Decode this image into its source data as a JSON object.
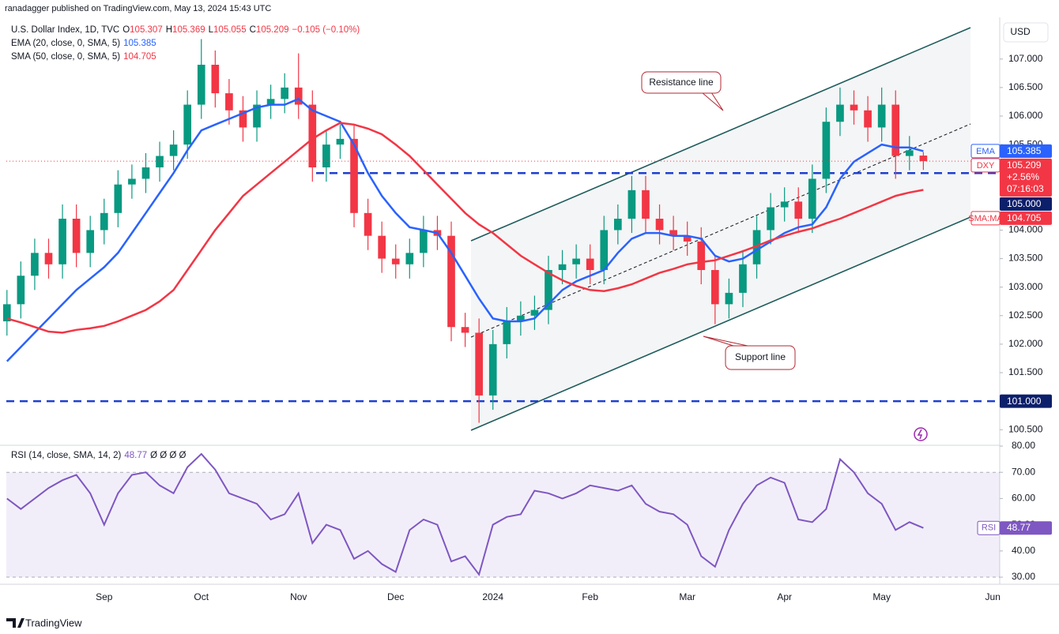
{
  "header": {
    "published": "ranadagger published on TradingView.com, May 13, 2024 15:43 UTC"
  },
  "chart_data": {
    "type": "candlestick",
    "currency": "USD",
    "categories": [
      null,
      null,
      null,
      null,
      null,
      null,
      null,
      "Sep",
      null,
      null,
      null,
      null,
      null,
      null,
      "Oct",
      null,
      null,
      null,
      null,
      null,
      null,
      "Nov",
      null,
      null,
      null,
      null,
      null,
      null,
      "Dec",
      null,
      null,
      null,
      null,
      null,
      null,
      "2024",
      null,
      null,
      null,
      null,
      null,
      null,
      "Feb",
      null,
      null,
      null,
      null,
      null,
      null,
      "Mar",
      null,
      null,
      null,
      null,
      null,
      null,
      "Apr",
      null,
      null,
      null,
      null,
      null,
      null,
      "May",
      null,
      null,
      null,
      null,
      null,
      null,
      null,
      "Jun"
    ],
    "ylim": [
      100.24,
      107.62
    ],
    "yticks": [
      {
        "value": 100.5,
        "label": "100.500"
      },
      {
        "value": 101,
        "label": "101.000"
      },
      {
        "value": 101.5,
        "label": "101.500"
      },
      {
        "value": 102,
        "label": "102.000"
      },
      {
        "value": 102.5,
        "label": "102.500"
      },
      {
        "value": 103,
        "label": "103.000"
      },
      {
        "value": 103.5,
        "label": "103.500"
      },
      {
        "value": 104,
        "label": "104.000"
      },
      {
        "value": 104.5,
        "label": "104.500"
      },
      {
        "value": 105,
        "label": "105.000"
      },
      {
        "value": 105.5,
        "label": "105.500"
      },
      {
        "value": 106,
        "label": "106.000"
      },
      {
        "value": 106.5,
        "label": "106.500"
      },
      {
        "value": 107,
        "label": "107.000"
      }
    ],
    "grid": false,
    "series": [
      {
        "name": "U.S. Dollar Index, 1D, TVC",
        "short_name": "DXY",
        "type": "candlestick",
        "up_color": "#089981",
        "down_color": "#f23645",
        "ohlc_labels": [
          "O",
          "H",
          "L",
          "C"
        ],
        "change": "−0.105 (−0.10%)",
        "change_percent": "+2.56%",
        "countdown": "07:16:03",
        "open": [
          102.4,
          102.7,
          103.2,
          103.6,
          103.4,
          104.2,
          103.6,
          104.0,
          104.3,
          104.8,
          104.9,
          105.1,
          105.3,
          105.5,
          106.2,
          106.9,
          106.4,
          106.1,
          105.8,
          106.2,
          106.3,
          106.5,
          106.2,
          105.1,
          105.5,
          105.6,
          104.3,
          103.9,
          103.5,
          103.4,
          103.6,
          104.0,
          103.9,
          102.3,
          102.2,
          101.1,
          102.0,
          102.4,
          102.5,
          102.6,
          103.3,
          103.4,
          103.5,
          103.3,
          104.0,
          104.2,
          104.7,
          104.2,
          104.0,
          103.9,
          103.8,
          103.3,
          102.7,
          102.9,
          103.4,
          104.0,
          104.4,
          104.5,
          104.2,
          104.9,
          105.9,
          106.2,
          106.1,
          105.8,
          106.2,
          105.3,
          105.307,
          null,
          null,
          null,
          null,
          null
        ],
        "high": [
          102.95,
          103.45,
          103.85,
          103.85,
          104.45,
          104.45,
          104.25,
          104.55,
          105.05,
          105.15,
          105.35,
          105.55,
          105.75,
          106.45,
          107.35,
          107.15,
          106.65,
          106.35,
          106.45,
          106.55,
          106.75,
          107.1,
          106.45,
          105.75,
          105.85,
          105.85,
          104.55,
          104.15,
          103.75,
          103.85,
          104.25,
          104.25,
          104.15,
          102.55,
          102.45,
          102.25,
          102.65,
          102.75,
          102.85,
          103.55,
          103.65,
          103.75,
          103.75,
          104.25,
          104.45,
          104.95,
          104.95,
          104.45,
          104.25,
          104.15,
          104.05,
          103.55,
          103.15,
          103.65,
          104.25,
          104.65,
          104.75,
          104.75,
          105.15,
          106.15,
          106.5,
          106.45,
          106.35,
          106.5,
          106.45,
          105.65,
          105.369,
          null,
          null,
          null,
          null,
          null
        ],
        "low": [
          102.15,
          102.45,
          102.95,
          103.15,
          103.15,
          103.35,
          103.35,
          103.75,
          104.05,
          104.55,
          104.65,
          104.85,
          105.05,
          105.25,
          105.95,
          106.15,
          105.85,
          105.55,
          105.55,
          105.95,
          106.05,
          105.95,
          104.85,
          104.85,
          105.25,
          104.05,
          103.65,
          103.25,
          103.15,
          103.15,
          103.35,
          103.65,
          102.05,
          101.95,
          100.62,
          100.85,
          101.75,
          102.15,
          102.25,
          102.35,
          103.05,
          103.15,
          103.05,
          103.05,
          103.75,
          103.95,
          103.95,
          103.75,
          103.65,
          103.55,
          103.05,
          102.35,
          102.45,
          102.65,
          103.15,
          103.75,
          104.15,
          103.95,
          103.95,
          104.65,
          105.65,
          105.85,
          105.55,
          105.55,
          104.9,
          105.05,
          105.055,
          null,
          null,
          null,
          null,
          null
        ],
        "close": [
          102.7,
          103.2,
          103.6,
          103.4,
          104.2,
          103.6,
          104.0,
          104.3,
          104.8,
          104.9,
          105.1,
          105.3,
          105.5,
          106.2,
          106.9,
          106.4,
          106.1,
          105.8,
          106.2,
          106.3,
          106.5,
          106.2,
          105.1,
          105.5,
          105.6,
          104.3,
          103.9,
          103.5,
          103.4,
          103.6,
          104.0,
          103.9,
          102.3,
          102.2,
          101.1,
          102.0,
          102.4,
          102.5,
          102.6,
          103.3,
          103.4,
          103.5,
          103.3,
          104.0,
          104.2,
          104.7,
          104.2,
          104.0,
          103.9,
          103.8,
          103.3,
          102.7,
          102.9,
          103.4,
          104.0,
          104.4,
          104.5,
          104.2,
          104.9,
          105.9,
          106.2,
          106.1,
          105.8,
          106.2,
          105.3,
          105.4,
          105.209,
          null,
          null,
          null,
          null,
          null
        ]
      },
      {
        "name": "EMA (20, close, 0, SMA, 5)",
        "short_name": "EMA",
        "type": "line",
        "color": "#2962ff",
        "values": [
          101.7,
          101.95,
          102.2,
          102.45,
          102.7,
          102.95,
          103.15,
          103.35,
          103.6,
          103.95,
          104.3,
          104.65,
          105.0,
          105.4,
          105.75,
          105.85,
          105.95,
          106.05,
          106.15,
          106.2,
          106.2,
          106.3,
          106.1,
          106.0,
          105.9,
          105.5,
          105.0,
          104.6,
          104.3,
          104.05,
          104.0,
          103.95,
          103.6,
          103.2,
          102.8,
          102.45,
          102.4,
          102.4,
          102.45,
          102.7,
          102.95,
          103.1,
          103.2,
          103.3,
          103.6,
          103.85,
          103.95,
          103.95,
          103.9,
          103.9,
          103.85,
          103.55,
          103.45,
          103.5,
          103.65,
          103.8,
          103.95,
          104.05,
          104.1,
          104.4,
          104.9,
          105.2,
          105.35,
          105.5,
          105.45,
          105.45,
          105.385,
          null,
          null,
          null,
          null,
          null
        ]
      },
      {
        "name": "SMA (50, close, 0, SMA, 5)",
        "short_name": "SMA:MA",
        "type": "line",
        "color": "#f23645",
        "values": [
          102.45,
          102.38,
          102.3,
          102.22,
          102.2,
          102.25,
          102.28,
          102.32,
          102.4,
          102.5,
          102.6,
          102.75,
          102.95,
          103.3,
          103.65,
          104.0,
          104.3,
          104.6,
          104.8,
          105.0,
          105.2,
          105.4,
          105.6,
          105.75,
          105.88,
          105.85,
          105.78,
          105.68,
          105.5,
          105.3,
          105.05,
          104.8,
          104.55,
          104.3,
          104.1,
          103.95,
          103.75,
          103.55,
          103.4,
          103.25,
          103.12,
          103.02,
          102.95,
          102.93,
          102.98,
          103.05,
          103.15,
          103.25,
          103.32,
          103.4,
          103.44,
          103.47,
          103.55,
          103.63,
          103.72,
          103.82,
          103.9,
          103.97,
          104.03,
          104.12,
          104.2,
          104.3,
          104.4,
          104.5,
          104.6,
          104.66,
          104.705,
          null,
          null,
          null,
          null,
          null
        ]
      }
    ],
    "hlines": [
      {
        "value": 105,
        "label": "105.000",
        "color": "#1e3fd0"
      },
      {
        "value": 101,
        "label": "101.000",
        "color": "#1e3fd0"
      }
    ],
    "annotations": [
      "Resistance line",
      "Support line"
    ],
    "rsi": {
      "name": "RSI (14, close, SMA, 14, 2)",
      "short_name": "RSI",
      "extra": "Ø Ø Ø Ø",
      "color": "#7e57c2",
      "ylim": [
        27.3,
        80
      ],
      "band": [
        30,
        70
      ],
      "yticks": [
        {
          "value": 30,
          "label": "30.00"
        },
        {
          "value": 40,
          "label": "40.00"
        },
        {
          "value": 50,
          "label": "50.00"
        },
        {
          "value": 60,
          "label": "60.00"
        },
        {
          "value": 70,
          "label": "70.00"
        },
        {
          "value": 80,
          "label": "80.00"
        }
      ],
      "values": [
        60,
        56,
        60,
        64,
        67,
        69,
        62,
        50,
        62,
        69,
        70,
        65,
        62,
        72,
        77,
        71,
        62,
        60,
        58,
        52,
        54,
        62,
        43,
        50,
        48,
        37,
        40,
        35,
        32,
        48,
        52,
        50,
        36,
        38,
        31,
        50,
        53,
        54,
        63,
        62,
        60,
        62,
        65,
        64,
        63,
        65,
        58,
        55,
        54,
        50,
        38,
        34,
        48,
        58,
        65,
        68,
        66,
        52,
        51,
        56,
        75,
        70,
        62,
        58,
        48,
        51,
        48.77,
        null,
        null,
        null,
        null,
        null
      ]
    }
  },
  "footer": {
    "brand": "TradingView"
  }
}
